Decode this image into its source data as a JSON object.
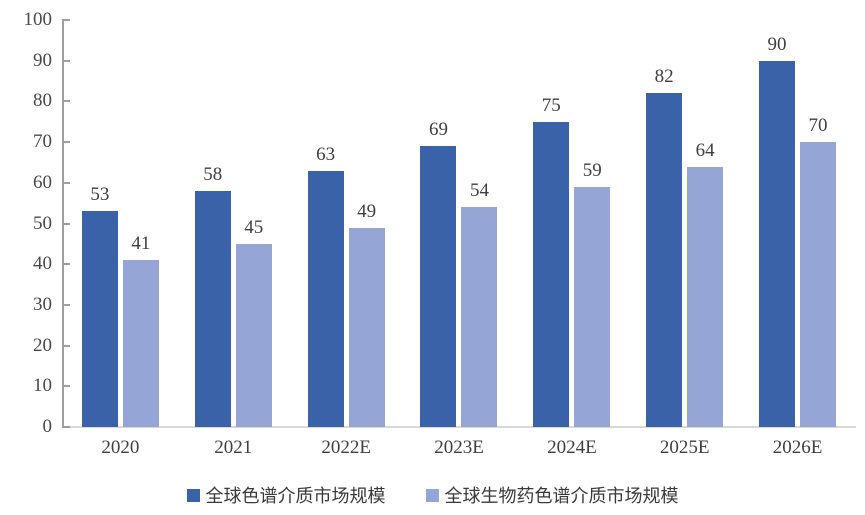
{
  "chart_data": {
    "type": "bar",
    "categories": [
      "2020",
      "2021",
      "2022E",
      "2023E",
      "2024E",
      "2025E",
      "2026E"
    ],
    "series": [
      {
        "name": "全球色谱介质市场规模",
        "color": "#3A62A8",
        "values": [
          53,
          58,
          63,
          69,
          75,
          82,
          90
        ]
      },
      {
        "name": "全球生物药色谱介质市场规模",
        "color": "#95A5D5",
        "values": [
          41,
          45,
          49,
          54,
          59,
          64,
          70
        ]
      }
    ],
    "title": "",
    "xlabel": "",
    "ylabel": "",
    "ylim": [
      0,
      100
    ],
    "yticks": [
      0,
      10,
      20,
      30,
      40,
      50,
      60,
      70,
      80,
      90,
      100
    ],
    "grid": false,
    "legend_position": "bottom",
    "value_labels_shown": true
  },
  "colors": {
    "axis": "#a0a0a0",
    "baseline": "#d9d9d9",
    "tick_label": "#4a4a4a",
    "value_label": "#3f3f3f",
    "background": "#ffffff"
  }
}
